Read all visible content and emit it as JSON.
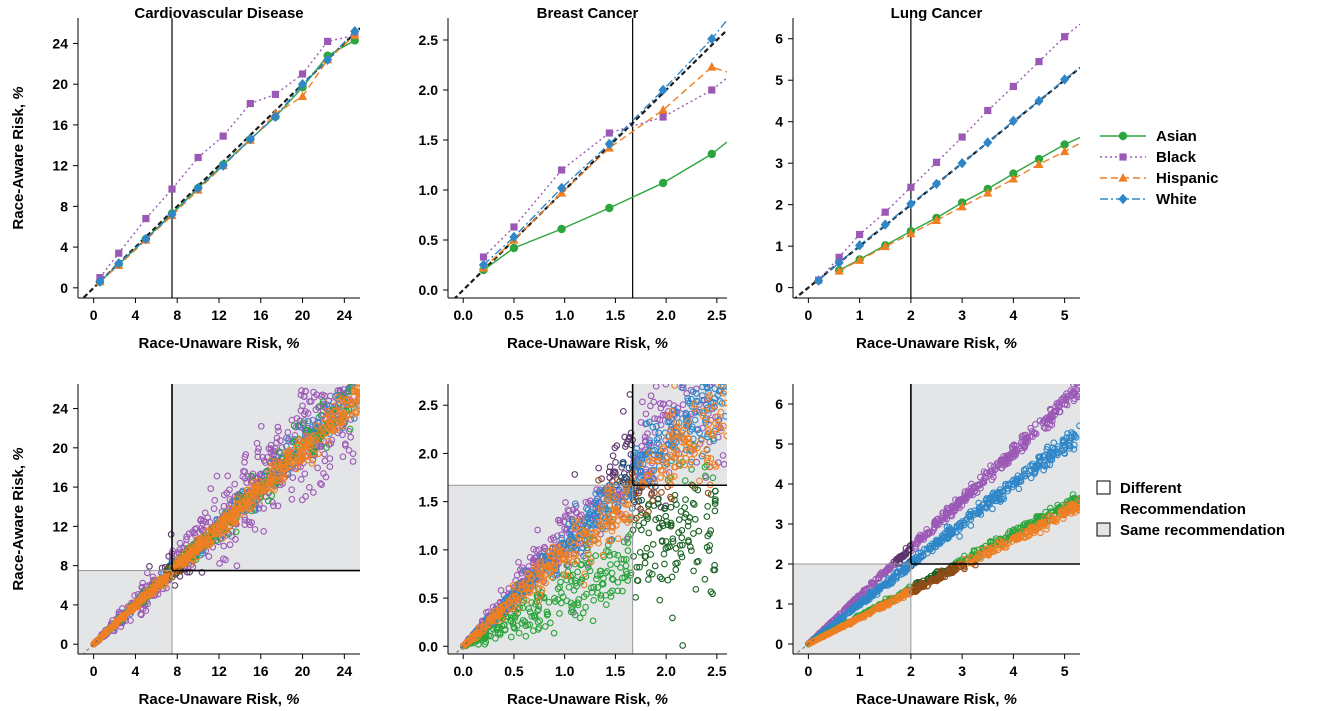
{
  "colors": {
    "asian": "#2ca53c",
    "black": "#9b59b6",
    "hispanic": "#f07f24",
    "white": "#2f87c8",
    "shade": "#e4e5e7"
  },
  "legend_top": {
    "items": [
      {
        "label": "Asian",
        "key": "asian",
        "dash": "",
        "marker": "circle"
      },
      {
        "label": "Black",
        "key": "black",
        "dash": "2,3",
        "marker": "square"
      },
      {
        "label": "Hispanic",
        "key": "hispanic",
        "dash": "7,4",
        "marker": "triangle"
      },
      {
        "label": "White",
        "key": "white",
        "dash": "8,3,2,3",
        "marker": "diamond"
      }
    ]
  },
  "legend_bottom": {
    "items": [
      {
        "label_lines": [
          "Different",
          "Recommendation"
        ],
        "fill": "#ffffff"
      },
      {
        "label_lines": [
          "Same recommendation"
        ],
        "fill": "#e4e5e7"
      }
    ]
  },
  "chart_data": [
    {
      "type": "line",
      "panel": "top-left",
      "title": "Cardiovascular Disease",
      "xlabel": "Race-Unaware Risk, %",
      "ylabel": "Race-Aware Risk, %",
      "xlim": [
        -1.5,
        25.5
      ],
      "ylim": [
        -1.0,
        26.5
      ],
      "xticks": [
        0,
        4,
        8,
        12,
        16,
        20,
        24
      ],
      "xtick_labels": [
        "0",
        "4",
        "8",
        "12",
        "16",
        "20",
        "24"
      ],
      "yticks": [
        0,
        4,
        8,
        12,
        16,
        20,
        24
      ],
      "ytick_labels": [
        "0",
        "4",
        "8",
        "12",
        "16",
        "20",
        "24"
      ],
      "threshold": 7.5,
      "series": [
        {
          "name": "Asian",
          "key": "asian",
          "x": [
            0.6,
            2.4,
            5.0,
            7.5,
            10.0,
            12.4,
            15.0,
            17.4,
            20.0,
            22.4,
            25.0
          ],
          "y": [
            0.6,
            2.3,
            4.8,
            7.3,
            9.8,
            12.1,
            14.6,
            16.8,
            19.7,
            22.8,
            24.3
          ]
        },
        {
          "name": "Black",
          "key": "black",
          "x": [
            0.6,
            2.4,
            5.0,
            7.5,
            10.0,
            12.4,
            15.0,
            17.4,
            20.0,
            22.4,
            25.0
          ],
          "y": [
            1.0,
            3.4,
            6.8,
            9.7,
            12.8,
            14.9,
            18.1,
            19.0,
            21.0,
            24.2,
            24.8
          ]
        },
        {
          "name": "Hispanic",
          "key": "hispanic",
          "x": [
            0.6,
            2.4,
            5.0,
            7.5,
            10.0,
            12.4,
            15.0,
            17.4,
            20.0,
            22.4,
            25.0
          ],
          "y": [
            0.6,
            2.2,
            4.7,
            7.1,
            9.6,
            12.0,
            14.5,
            17.1,
            18.8,
            22.4,
            24.8
          ]
        },
        {
          "name": "White",
          "key": "white",
          "x": [
            0.6,
            2.4,
            5.0,
            7.5,
            10.0,
            12.4,
            15.0,
            17.4,
            20.0,
            22.4,
            25.0
          ],
          "y": [
            0.6,
            2.4,
            4.8,
            7.2,
            9.8,
            12.0,
            14.6,
            16.8,
            20.0,
            22.4,
            25.2
          ]
        }
      ]
    },
    {
      "type": "line",
      "panel": "top-middle",
      "title": "Breast Cancer",
      "xlabel": "Race-Unaware Risk, %",
      "ylabel": "",
      "xlim": [
        -0.15,
        2.6
      ],
      "ylim": [
        -0.08,
        2.72
      ],
      "xticks": [
        0.0,
        0.5,
        1.0,
        1.5,
        2.0,
        2.5
      ],
      "xtick_labels": [
        "0.0",
        "0.5",
        "1.0",
        "1.5",
        "2.0",
        "2.5"
      ],
      "yticks": [
        0.0,
        0.5,
        1.0,
        1.5,
        2.0,
        2.5
      ],
      "ytick_labels": [
        "0.0",
        "0.5",
        "1.0",
        "1.5",
        "2.0",
        "2.5"
      ],
      "threshold": 1.67,
      "series": [
        {
          "name": "Asian",
          "key": "asian",
          "x": [
            0.2,
            0.5,
            0.97,
            1.44,
            1.97,
            2.45,
            2.6
          ],
          "y": [
            0.2,
            0.42,
            0.61,
            0.82,
            1.07,
            1.36,
            1.48
          ]
        },
        {
          "name": "Black",
          "key": "black",
          "x": [
            0.2,
            0.5,
            0.97,
            1.44,
            1.97,
            2.45,
            2.6
          ],
          "y": [
            0.33,
            0.63,
            1.2,
            1.57,
            1.73,
            2.0,
            2.12
          ]
        },
        {
          "name": "Hispanic",
          "key": "hispanic",
          "x": [
            0.2,
            0.5,
            0.97,
            1.44,
            1.97,
            2.45,
            2.6
          ],
          "y": [
            0.22,
            0.5,
            0.97,
            1.42,
            1.8,
            2.23,
            2.18
          ]
        },
        {
          "name": "White",
          "key": "white",
          "x": [
            0.2,
            0.5,
            0.97,
            1.44,
            1.97,
            2.45,
            2.6
          ],
          "y": [
            0.25,
            0.53,
            1.02,
            1.46,
            2.0,
            2.51,
            2.7
          ]
        }
      ]
    },
    {
      "type": "line",
      "panel": "top-right",
      "title": "Lung Cancer",
      "xlabel": "Race-Unaware Risk, %",
      "ylabel": "",
      "xlim": [
        -0.3,
        5.3
      ],
      "ylim": [
        -0.25,
        6.5
      ],
      "xticks": [
        0,
        1,
        2,
        3,
        4,
        5
      ],
      "xtick_labels": [
        "0",
        "1",
        "2",
        "3",
        "4",
        "5"
      ],
      "yticks": [
        0,
        1,
        2,
        3,
        4,
        5,
        6
      ],
      "ytick_labels": [
        "0",
        "1",
        "2",
        "3",
        "4",
        "5",
        "6"
      ],
      "threshold": 2.0,
      "series": [
        {
          "name": "Asian",
          "key": "asian",
          "x": [
            0.6,
            1.0,
            1.5,
            2.0,
            2.5,
            3.0,
            3.5,
            4.0,
            4.5,
            5.0,
            5.3
          ],
          "y": [
            0.42,
            0.68,
            1.02,
            1.36,
            1.68,
            2.05,
            2.38,
            2.75,
            3.1,
            3.45,
            3.62
          ]
        },
        {
          "name": "Black",
          "key": "black",
          "x": [
            0.2,
            0.6,
            1.0,
            1.5,
            2.0,
            2.5,
            3.0,
            3.5,
            4.0,
            4.5,
            5.0,
            5.3
          ],
          "y": [
            0.18,
            0.73,
            1.28,
            1.82,
            2.42,
            3.02,
            3.63,
            4.27,
            4.85,
            5.45,
            6.05,
            6.35
          ]
        },
        {
          "name": "Hispanic",
          "key": "hispanic",
          "x": [
            0.6,
            1.0,
            1.5,
            2.0,
            2.5,
            3.0,
            3.5,
            4.0,
            4.5,
            5.0,
            5.3
          ],
          "y": [
            0.4,
            0.66,
            0.99,
            1.3,
            1.62,
            1.95,
            2.28,
            2.62,
            2.97,
            3.28,
            3.48
          ]
        },
        {
          "name": "White",
          "key": "white",
          "x": [
            0.2,
            0.6,
            1.0,
            1.5,
            2.0,
            2.5,
            3.0,
            3.5,
            4.0,
            4.5,
            5.0,
            5.3
          ],
          "y": [
            0.17,
            0.6,
            1.02,
            1.52,
            2.02,
            2.5,
            3.0,
            3.5,
            4.02,
            4.5,
            5.02,
            5.3
          ]
        }
      ]
    },
    {
      "type": "scatter",
      "panel": "bottom-left",
      "xlabel": "Race-Unaware Risk, %",
      "ylabel": "Race-Aware Risk, %",
      "xlim": [
        -1.5,
        25.5
      ],
      "ylim": [
        -1.0,
        26.5
      ],
      "xticks": [
        0,
        4,
        8,
        12,
        16,
        20,
        24
      ],
      "xtick_labels": [
        "0",
        "4",
        "8",
        "12",
        "16",
        "20",
        "24"
      ],
      "yticks": [
        0,
        4,
        8,
        12,
        16,
        20,
        24
      ],
      "ytick_labels": [
        "0",
        "4",
        "8",
        "12",
        "16",
        "20",
        "24"
      ],
      "threshold": 7.5,
      "clouds": [
        {
          "key": "black",
          "slope": 1.03,
          "max": 25,
          "spread": 0.14,
          "n": 600
        },
        {
          "key": "white",
          "slope": 1.0,
          "max": 25.5,
          "spread": 0.05,
          "n": 300
        },
        {
          "key": "asian",
          "slope": 0.99,
          "max": 25,
          "spread": 0.05,
          "n": 250
        },
        {
          "key": "hispanic",
          "slope": 0.99,
          "max": 25.5,
          "spread": 0.04,
          "n": 600
        }
      ],
      "series": []
    },
    {
      "type": "scatter",
      "panel": "bottom-middle",
      "xlabel": "Race-Unaware Risk, %",
      "ylabel": "",
      "xlim": [
        -0.15,
        2.6
      ],
      "ylim": [
        -0.08,
        2.72
      ],
      "xticks": [
        0.0,
        0.5,
        1.0,
        1.5,
        2.0,
        2.5
      ],
      "xtick_labels": [
        "0.0",
        "0.5",
        "1.0",
        "1.5",
        "2.0",
        "2.5"
      ],
      "yticks": [
        0.0,
        0.5,
        1.0,
        1.5,
        2.0,
        2.5
      ],
      "ytick_labels": [
        "0.0",
        "0.5",
        "1.0",
        "1.5",
        "2.0",
        "2.5"
      ],
      "threshold": 1.67,
      "clouds": [
        {
          "key": "black",
          "slope": 1.12,
          "max": 2.6,
          "spread": 0.16,
          "n": 500
        },
        {
          "key": "asian",
          "slope": 0.56,
          "max": 2.5,
          "spread": 0.3,
          "n": 400
        },
        {
          "key": "white",
          "slope": 1.03,
          "max": 2.6,
          "spread": 0.09,
          "n": 500
        },
        {
          "key": "hispanic",
          "slope": 0.96,
          "max": 2.6,
          "spread": 0.13,
          "n": 400
        }
      ],
      "series": []
    },
    {
      "type": "scatter",
      "panel": "bottom-right",
      "xlabel": "Race-Unaware Risk, %",
      "ylabel": "",
      "xlim": [
        -0.3,
        5.3
      ],
      "ylim": [
        -0.25,
        6.5
      ],
      "xticks": [
        0,
        1,
        2,
        3,
        4,
        5
      ],
      "xtick_labels": [
        "0",
        "1",
        "2",
        "3",
        "4",
        "5"
      ],
      "yticks": [
        0,
        1,
        2,
        3,
        4,
        5,
        6
      ],
      "ytick_labels": [
        "0",
        "1",
        "2",
        "3",
        "4",
        "5",
        "6"
      ],
      "threshold": 2.0,
      "clouds": [
        {
          "key": "black",
          "slope": 1.2,
          "max": 5.3,
          "spread": 0.02,
          "n": 500
        },
        {
          "key": "white",
          "slope": 1.0,
          "max": 5.3,
          "spread": 0.025,
          "n": 500
        },
        {
          "key": "asian",
          "slope": 0.69,
          "max": 5.3,
          "spread": 0.025,
          "n": 400
        },
        {
          "key": "hispanic",
          "slope": 0.655,
          "max": 5.3,
          "spread": 0.025,
          "n": 400
        }
      ],
      "series": []
    }
  ]
}
